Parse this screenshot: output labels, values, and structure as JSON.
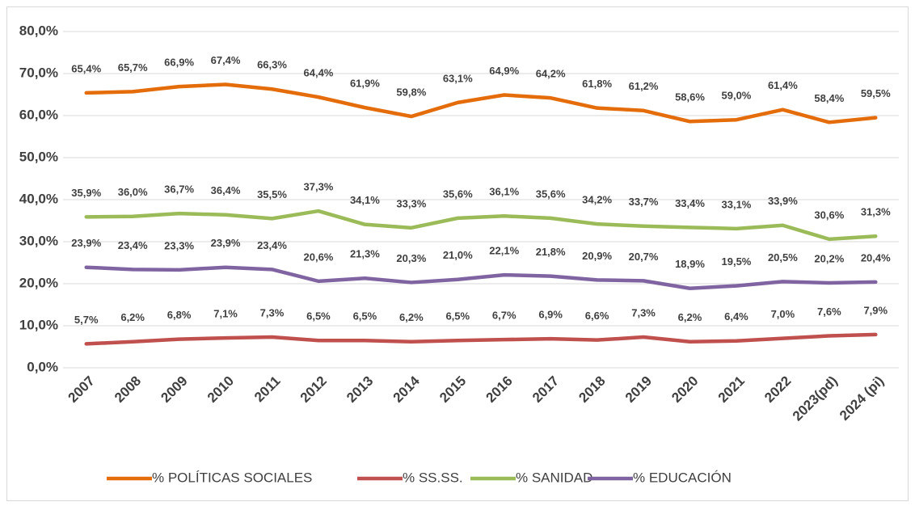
{
  "chart_data": {
    "type": "line",
    "categories": [
      "2007",
      "2008",
      "2009",
      "2010",
      "2011",
      "2012",
      "2013",
      "2014",
      "2015",
      "2016",
      "2017",
      "2018",
      "2019",
      "2020",
      "2021",
      "2022",
      "2023(pd)",
      "2024 (pi)"
    ],
    "ylim": [
      0,
      80
    ],
    "yticks": [
      {
        "value": 0,
        "label": "0,0%"
      },
      {
        "value": 10,
        "label": "10,0%"
      },
      {
        "value": 20,
        "label": "20,0%"
      },
      {
        "value": 30,
        "label": "30,0%"
      },
      {
        "value": 40,
        "label": "40,0%"
      },
      {
        "value": 50,
        "label": "50,0%"
      },
      {
        "value": 60,
        "label": "60,0%"
      },
      {
        "value": 70,
        "label": "70,0%"
      },
      {
        "value": 80,
        "label": "80,0%"
      }
    ],
    "grid": true,
    "legend": "bottom",
    "series": [
      {
        "name": "% POLÍTICAS SOCIALES",
        "color": "#e46c0a",
        "values": [
          65.4,
          65.7,
          66.9,
          67.4,
          66.3,
          64.4,
          61.9,
          59.8,
          63.1,
          64.9,
          64.2,
          61.8,
          61.2,
          58.6,
          59.0,
          61.4,
          58.4,
          59.5
        ],
        "value_labels": [
          "65,4%",
          "65,7%",
          "66,9%",
          "67,4%",
          "66,3%",
          "64,4%",
          "61,9%",
          "59,8%",
          "63,1%",
          "64,9%",
          "64,2%",
          "61,8%",
          "61,2%",
          "58,6%",
          "59,0%",
          "61,4%",
          "58,4%",
          "59,5%"
        ]
      },
      {
        "name": "% SS.SS.",
        "color": "#c0504d",
        "values": [
          5.7,
          6.2,
          6.8,
          7.1,
          7.3,
          6.5,
          6.5,
          6.2,
          6.5,
          6.7,
          6.9,
          6.6,
          7.3,
          6.2,
          6.4,
          7.0,
          7.6,
          7.9
        ],
        "value_labels": [
          "5,7%",
          "6,2%",
          "6,8%",
          "7,1%",
          "7,3%",
          "6,5%",
          "6,5%",
          "6,2%",
          "6,5%",
          "6,7%",
          "6,9%",
          "6,6%",
          "7,3%",
          "6,2%",
          "6,4%",
          "7,0%",
          "7,6%",
          "7,9%"
        ]
      },
      {
        "name": "% SANIDAD",
        "color": "#9bbb59",
        "values": [
          35.9,
          36.0,
          36.7,
          36.4,
          35.5,
          37.3,
          34.1,
          33.3,
          35.6,
          36.1,
          35.6,
          34.2,
          33.7,
          33.4,
          33.1,
          33.9,
          30.6,
          31.3
        ],
        "value_labels": [
          "35,9%",
          "36,0%",
          "36,7%",
          "36,4%",
          "35,5%",
          "37,3%",
          "34,1%",
          "33,3%",
          "35,6%",
          "36,1%",
          "35,6%",
          "34,2%",
          "33,7%",
          "33,4%",
          "33,1%",
          "33,9%",
          "30,6%",
          "31,3%"
        ]
      },
      {
        "name": "% EDUCACIÓN",
        "color": "#8064a2",
        "values": [
          23.9,
          23.4,
          23.3,
          23.9,
          23.4,
          20.6,
          21.3,
          20.3,
          21.0,
          22.1,
          21.8,
          20.9,
          20.7,
          18.9,
          19.5,
          20.5,
          20.2,
          20.4
        ],
        "value_labels": [
          "23,9%",
          "23,4%",
          "23,3%",
          "23,9%",
          "23,4%",
          "20,6%",
          "21,3%",
          "20,3%",
          "21,0%",
          "22,1%",
          "21,8%",
          "20,9%",
          "20,7%",
          "18,9%",
          "19,5%",
          "20,5%",
          "20,2%",
          "20,4%"
        ]
      }
    ]
  }
}
